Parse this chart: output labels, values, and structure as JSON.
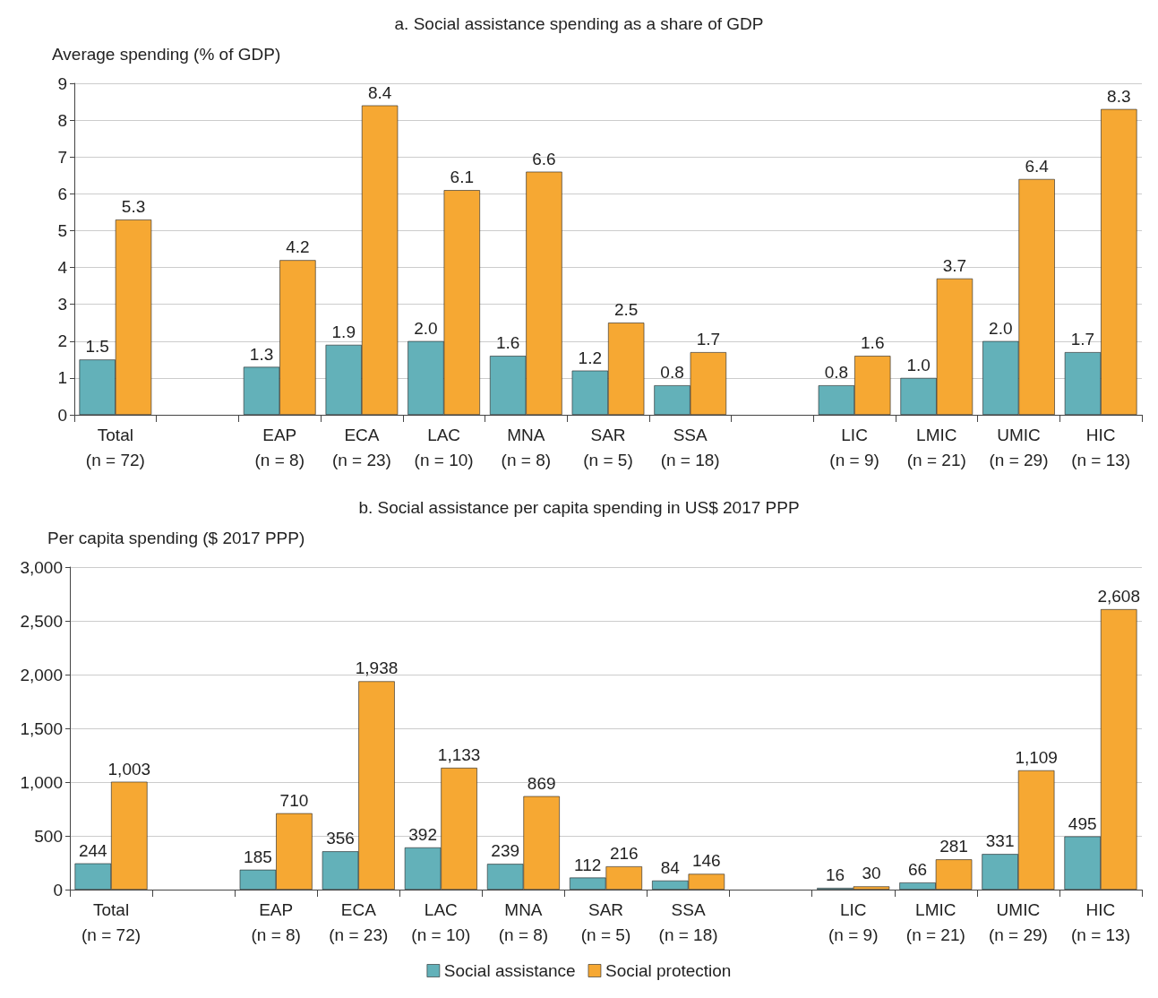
{
  "chart_data": [
    {
      "type": "bar",
      "title": "a. Social assistance spending as a share of GDP",
      "ylabel": "Average spending (% of GDP)",
      "categories": [
        "Total\n(n = 72)",
        null,
        "EAP\n(n = 8)",
        "ECA\n(n = 23)",
        "LAC\n(n = 10)",
        "MNA\n(n = 8)",
        "SAR\n(n = 5)",
        "SSA\n(n = 18)",
        null,
        "LIC\n(n = 9)",
        "LMIC\n(n = 21)",
        "UMIC\n(n = 29)",
        "HIC\n(n = 13)"
      ],
      "series": [
        {
          "color": "#63b1b9",
          "values": [
            1.5,
            null,
            1.3,
            1.9,
            2.0,
            1.6,
            1.2,
            0.8,
            null,
            0.8,
            1.0,
            2.0,
            1.7
          ],
          "value_labels": [
            "1.5",
            null,
            "1.3",
            "1.9",
            "2.0",
            "1.6",
            "1.2",
            "0.8",
            null,
            "0.8",
            "1.0",
            "2.0",
            "1.7"
          ]
        },
        {
          "color": "#f6a833",
          "values": [
            5.3,
            null,
            4.2,
            8.4,
            6.1,
            6.6,
            2.5,
            1.7,
            null,
            1.6,
            3.7,
            6.4,
            8.3
          ],
          "value_labels": [
            "5.3",
            null,
            "4.2",
            "8.4",
            "6.1",
            "6.6",
            "2.5",
            "1.7",
            null,
            "1.6",
            "3.7",
            "6.4",
            "8.3"
          ]
        }
      ],
      "ylim": [
        0,
        9
      ],
      "yticks": [
        0,
        1,
        2,
        3,
        4,
        5,
        6,
        7,
        8,
        9
      ],
      "grid": "y",
      "legend": false
    },
    {
      "type": "bar",
      "title": "b. Social assistance per capita spending in US$ 2017 PPP",
      "ylabel": "Per capita spending ($ 2017 PPP)",
      "categories": [
        "Total\n(n = 72)",
        null,
        "EAP\n(n = 8)",
        "ECA\n(n = 23)",
        "LAC\n(n = 10)",
        "MNA\n(n = 8)",
        "SAR\n(n = 5)",
        "SSA\n(n = 18)",
        null,
        "LIC\n(n = 9)",
        "LMIC\n(n = 21)",
        "UMIC\n(n = 29)",
        "HIC\n(n = 13)"
      ],
      "series": [
        {
          "name": "Social assistance",
          "color": "#63b1b9",
          "values": [
            244,
            null,
            185,
            356,
            392,
            239,
            112,
            84,
            null,
            16,
            66,
            331,
            495
          ],
          "value_labels": [
            "244",
            null,
            "185",
            "356",
            "392",
            "239",
            "112",
            "84",
            null,
            "16",
            "66",
            "331",
            "495"
          ]
        },
        {
          "name": "Social protection",
          "color": "#f6a833",
          "values": [
            1003,
            null,
            710,
            1938,
            1133,
            869,
            216,
            146,
            null,
            30,
            281,
            1109,
            2608
          ],
          "value_labels": [
            "1,003",
            null,
            "710",
            "1,938",
            "1,133",
            "869",
            "216",
            "146",
            null,
            "30",
            "281",
            "1,109",
            "2,608"
          ]
        }
      ],
      "ylim": [
        0,
        3000
      ],
      "yticks": [
        0,
        {
          "value": 500,
          "label": "500"
        },
        {
          "value": 1000,
          "label": "1,000"
        },
        {
          "value": 1500,
          "label": "1,500"
        },
        {
          "value": 2000,
          "label": "2,000"
        },
        {
          "value": 2500,
          "label": "2,500"
        },
        {
          "value": 3000,
          "label": "3,000"
        }
      ],
      "grid": "y",
      "legend": "bottom"
    }
  ]
}
